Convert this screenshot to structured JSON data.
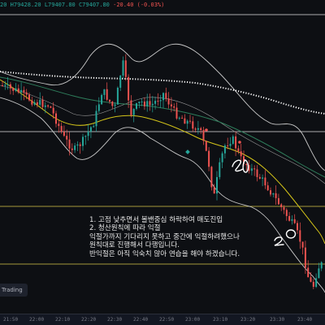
{
  "ohlc": {
    "open_suffix": "20",
    "high": "H79428.20",
    "low": "L79407.80",
    "close": "C79407.80",
    "change": "-20.40 (-0.03%)"
  },
  "annotation": {
    "lines": [
      "1. 고점 낮추면서 볼밴중심 하락하여 매도진입",
      "2. 청산원칙에 따라 익절",
      "익절가까지 기다리지 못하고 중간에 익절하려했으나",
      "원칙대로 진행해서 다행입니다.",
      "반익절은 아직 익숙치 않아 연습을 해야 하겠습니다."
    ],
    "marker_1": "1",
    "marker_2": "2"
  },
  "watermark": "Trading",
  "time_axis": [
    "21:50",
    "22:00",
    "22:10",
    "22:20",
    "22:30",
    "22:40",
    "22:50",
    "23:00",
    "23:10",
    "23:20",
    "23:30",
    "23:40"
  ],
  "colors": {
    "background": "#0d0f13",
    "up_candle": "#26a69a",
    "down_candle": "#ef5350",
    "bollinger": "#c8c8c8",
    "sma_yellow": "#d4c419",
    "sma_green": "#2e7d5b",
    "dotted_ma": "#ffffff",
    "horizontal_level": "#d9c94a",
    "annotation": "#ffffff"
  }
}
